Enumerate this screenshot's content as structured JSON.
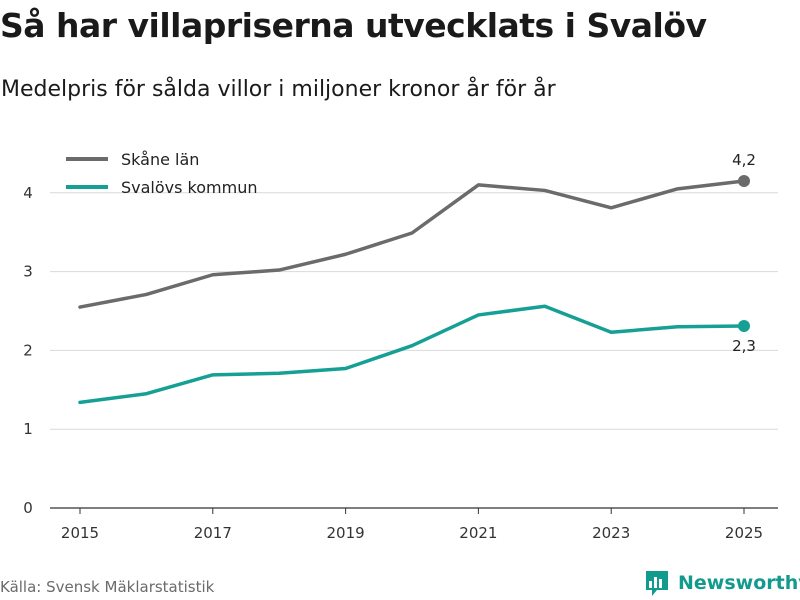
{
  "title": "Så har villapriserna utvecklats i Svalöv",
  "subtitle": "Medelpris för sålda villor i miljoner kronor år för år",
  "source": "Källa: Svensk Mäklarstatistik",
  "brand": {
    "name": "Newsworthy",
    "icon": "bar-chart-logo-icon",
    "color": "#139a8f"
  },
  "chart_data": {
    "type": "line",
    "x": [
      2015,
      2016,
      2017,
      2018,
      2019,
      2020,
      2021,
      2022,
      2023,
      2024,
      2025
    ],
    "x_ticks": [
      "2015",
      "2017",
      "2019",
      "2021",
      "2023",
      "2025"
    ],
    "y_ticks": [
      "0",
      "1",
      "2",
      "3",
      "4"
    ],
    "ylim": [
      0,
      4.5
    ],
    "grid": true,
    "legend_position": "top-left",
    "series": [
      {
        "name": "Skåne län",
        "color": "#6b6b6b",
        "values": [
          2.55,
          2.71,
          2.96,
          3.02,
          3.22,
          3.49,
          4.1,
          4.03,
          3.81,
          4.05,
          4.15
        ],
        "end_label": "4,2"
      },
      {
        "name": "Svalövs kommun",
        "color": "#16a095",
        "values": [
          1.34,
          1.45,
          1.69,
          1.71,
          1.77,
          2.06,
          2.45,
          2.56,
          2.23,
          2.3,
          2.31
        ],
        "end_label": "2,3"
      }
    ]
  }
}
